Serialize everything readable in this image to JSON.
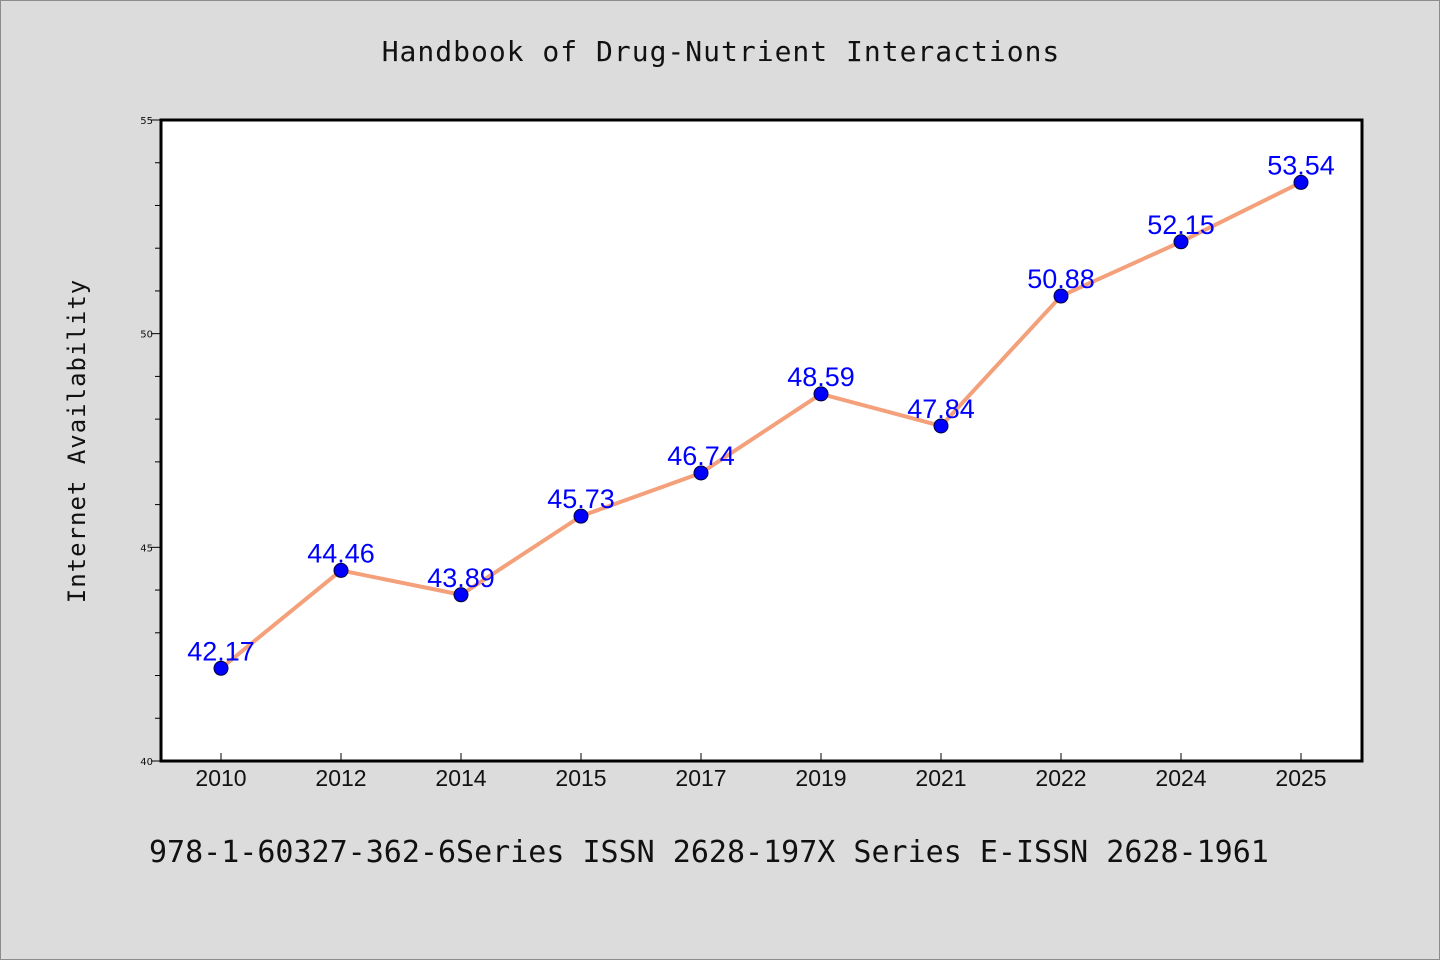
{
  "chart_data": {
    "type": "line",
    "title": "Handbook of Drug-Nutrient Interactions",
    "ylabel": "Internet Availability",
    "xlabel": "",
    "categories": [
      "2010",
      "2012",
      "2014",
      "2015",
      "2017",
      "2019",
      "2021",
      "2022",
      "2024",
      "2025"
    ],
    "series": [
      {
        "values": [
          42.17,
          44.46,
          43.89,
          45.73,
          46.74,
          48.59,
          47.84,
          50.88,
          52.15,
          53.54
        ],
        "line_color": "#f4a07a",
        "marker_color": "#0000ff"
      }
    ],
    "data_labels": [
      "42.17",
      "44.46",
      "43.89",
      "45.73",
      "46.74",
      "48.59",
      "47.84",
      "50.88",
      "52.15",
      "53.54"
    ],
    "ylim": [
      40,
      55
    ],
    "yticks": [
      40,
      45,
      50,
      55
    ],
    "grid": false,
    "legend": "none"
  },
  "caption": "978-1-60327-362-6Series ISSN 2628-197X Series E-ISSN 2628-1961"
}
